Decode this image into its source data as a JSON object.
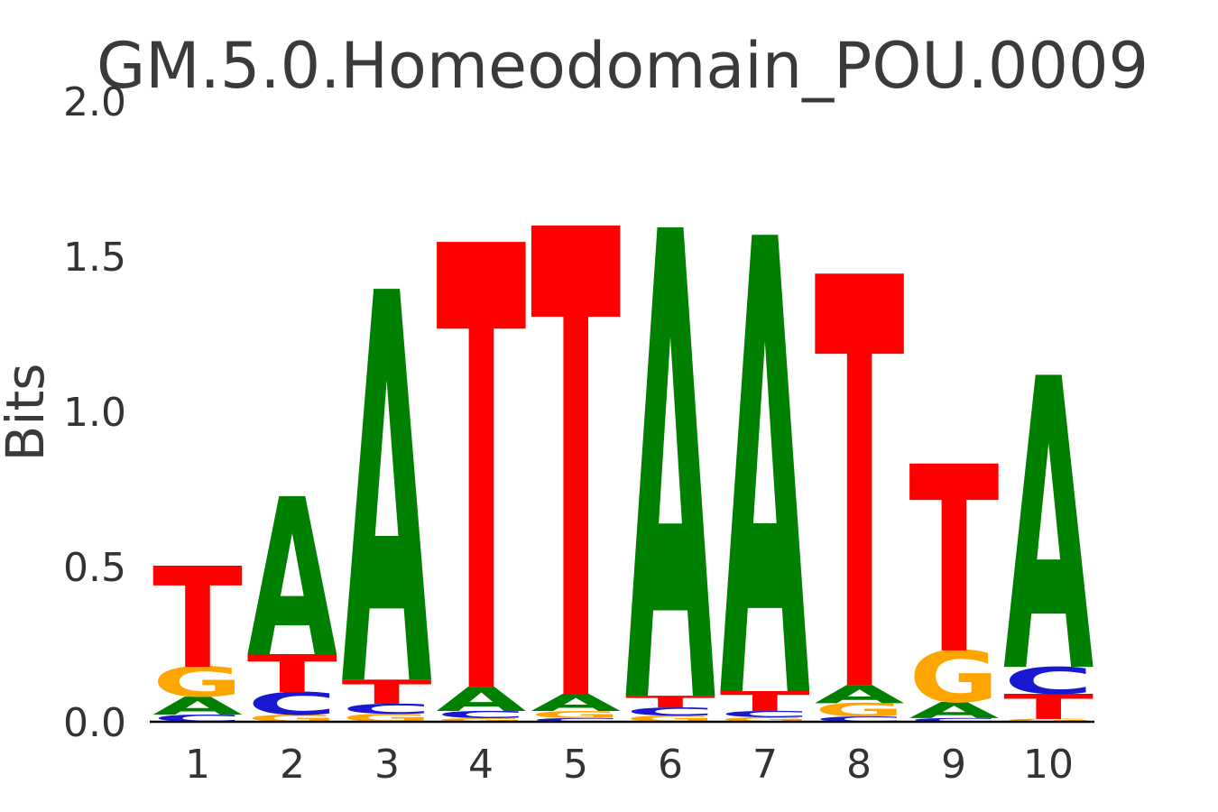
{
  "figure": {
    "background": "#ffffff"
  },
  "chart_data": {
    "type": "sequence_logo",
    "title": "GM.5.0.Homeodomain_POU.0009",
    "ylabel": "Bits",
    "xlabel": "",
    "unit": "bits",
    "ylim": [
      0,
      2
    ],
    "grid": false,
    "legend": false,
    "y_tick_labels": [
      "2.0",
      "1.5",
      "1.0",
      "0.5",
      "0.0"
    ],
    "y_tick_values": [
      2.0,
      1.5,
      1.0,
      0.5,
      0.0
    ],
    "x_tick_labels": [
      "1",
      "2",
      "3",
      "4",
      "5",
      "6",
      "7",
      "8",
      "9",
      "10"
    ],
    "axis_text_color": "#333333",
    "baseline_color": "#000000",
    "base_colors": {
      "A": "#008000",
      "C": "#1919D2",
      "G": "#FFA500",
      "T": "#FF0000"
    },
    "positions": [
      {
        "position": 1,
        "stack": [
          {
            "base": "C",
            "bits": 0.023
          },
          {
            "base": "A",
            "bits": 0.058
          },
          {
            "base": "G",
            "bits": 0.096
          },
          {
            "base": "T",
            "bits": 0.326
          }
        ]
      },
      {
        "position": 2,
        "stack": [
          {
            "base": "G",
            "bits": 0.023
          },
          {
            "base": "C",
            "bits": 0.073
          },
          {
            "base": "T",
            "bits": 0.122
          },
          {
            "base": "A",
            "bits": 0.509
          }
        ]
      },
      {
        "position": 3,
        "stack": [
          {
            "base": "G",
            "bits": 0.026
          },
          {
            "base": "C",
            "bits": 0.032
          },
          {
            "base": "T",
            "bits": 0.078
          },
          {
            "base": "A",
            "bits": 1.259
          }
        ]
      },
      {
        "position": 4,
        "stack": [
          {
            "base": "G",
            "bits": 0.012
          },
          {
            "base": "C",
            "bits": 0.023
          },
          {
            "base": "A",
            "bits": 0.078
          },
          {
            "base": "T",
            "bits": 1.433
          }
        ]
      },
      {
        "position": 5,
        "stack": [
          {
            "base": "C",
            "bits": 0.012
          },
          {
            "base": "G",
            "bits": 0.023
          },
          {
            "base": "A",
            "bits": 0.055
          },
          {
            "base": "T",
            "bits": 1.509
          }
        ]
      },
      {
        "position": 6,
        "stack": [
          {
            "base": "G",
            "bits": 0.02
          },
          {
            "base": "C",
            "bits": 0.026
          },
          {
            "base": "T",
            "bits": 0.038
          },
          {
            "base": "A",
            "bits": 1.509
          }
        ]
      },
      {
        "position": 7,
        "stack": [
          {
            "base": "G",
            "bits": 0.015
          },
          {
            "base": "C",
            "bits": 0.02
          },
          {
            "base": "T",
            "bits": 0.064
          },
          {
            "base": "A",
            "bits": 1.47
          }
        ]
      },
      {
        "position": 8,
        "stack": [
          {
            "base": "C",
            "bits": 0.017
          },
          {
            "base": "G",
            "bits": 0.043
          },
          {
            "base": "A",
            "bits": 0.058
          },
          {
            "base": "T",
            "bits": 1.326
          }
        ]
      },
      {
        "position": 9,
        "stack": [
          {
            "base": "C",
            "bits": 0.012
          },
          {
            "base": "A",
            "bits": 0.052
          },
          {
            "base": "G",
            "bits": 0.166
          },
          {
            "base": "T",
            "bits": 0.602
          }
        ]
      },
      {
        "position": 10,
        "stack": [
          {
            "base": "G",
            "bits": 0.009
          },
          {
            "base": "T",
            "bits": 0.081
          },
          {
            "base": "C",
            "bits": 0.087
          },
          {
            "base": "A",
            "bits": 0.941
          }
        ]
      }
    ]
  }
}
